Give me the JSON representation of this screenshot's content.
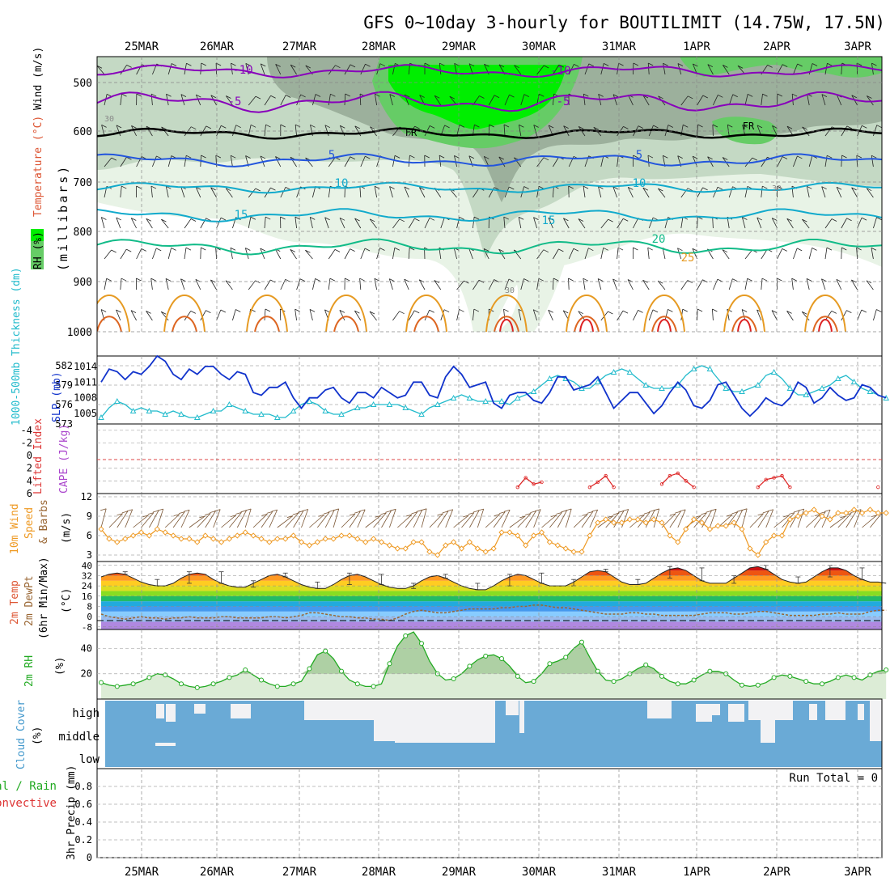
{
  "title": "GFS 0~10day 3-hourly for BOUTILIMIT (14.75W, 17.5N)",
  "dates": [
    "25MAR",
    "26MAR",
    "27MAR",
    "28MAR",
    "29MAR",
    "30MAR",
    "31MAR",
    "1APR",
    "2APR",
    "3APR"
  ],
  "colors": {
    "rh_light": "#e8f3e6",
    "rh_mid": "#c4d9c4",
    "rh_dark": "#9cb09c",
    "rh_green": "#66cc66",
    "rh_bright": "#00ee00",
    "purple": "#8800bb",
    "blue": "#2255dd",
    "cyan": "#11aacc",
    "teal": "#11bb88",
    "orange": "#e69a22",
    "red": "#dd2222",
    "slp": "#1133cc",
    "thick": "#22bbcc",
    "wind10": "#ee9922",
    "dew": "#996633",
    "rh2": "#22aa22",
    "cloud": "#6aaad6",
    "cloud_clear": "#f2f2f4"
  },
  "panels": {
    "upper": {
      "ylabel_rh": "RH (%)",
      "ylabel_temp": "Temperature (°C)",
      "ylabel_wind": "Wind (m/s)",
      "ylabel_units": "(millibars)",
      "levels": [
        "500",
        "600",
        "700",
        "800",
        "900",
        "1000"
      ],
      "contour_labels": [
        "-10",
        "-5",
        "FR",
        "5",
        "10",
        "15",
        "20",
        "25",
        "30"
      ]
    },
    "slp": {
      "ylabel_thick": "1000-500mb Thickness (dm)",
      "ylabel_slp": "SLP (mb)",
      "left_ticks": [
        "582",
        "579",
        "576",
        "573"
      ],
      "right_ticks": [
        "1014",
        "1011",
        "1008",
        "1005"
      ]
    },
    "cape": {
      "ylabel_li": "Lifted Index",
      "ylabel_cape": "CAPE (J/kg)",
      "left_ticks": [
        "-4",
        "-2",
        "0",
        "2",
        "4",
        "6"
      ]
    },
    "wind": {
      "ylabel1": "10m Wind",
      "ylabel2": "Speed",
      "ylabel3": "& Barbs",
      "units": "(m/s)",
      "ticks": [
        "3",
        "6",
        "9",
        "12"
      ]
    },
    "temp": {
      "ylabel1": "2m Temp",
      "ylabel2": "2m DewPt",
      "ylabel3": "(6hr Min/Max)",
      "units": "(°C)",
      "ticks": [
        "40",
        "32",
        "24",
        "16",
        "8",
        "0",
        "-8"
      ]
    },
    "rh2m": {
      "ylabel": "2m RH",
      "units": "(%)",
      "ticks": [
        "40",
        "20"
      ]
    },
    "cloud": {
      "ylabel": "Cloud Cover",
      "units": "(%)",
      "levels": [
        "high",
        "middle",
        "low"
      ]
    },
    "precip": {
      "ylabel1": "Total / Rain",
      "ylabel2": "Convective",
      "ylabel3": "3hr Precip (mm)",
      "ticks": [
        "0.8",
        "0.6",
        "0.4",
        "0.2",
        "0"
      ],
      "run_total": "Run Total = 0"
    }
  },
  "chart_data": [
    {
      "type": "line",
      "title": "",
      "panel": "SLP and 1000-500mb Thickness",
      "xlabel": "",
      "ylabel": "SLP (mb)",
      "ylim": [
        1003,
        1016
      ],
      "series": [
        {
          "name": "SLP (mb)",
          "values": [
            1011,
            1013.5,
            1013,
            1011.5,
            1013,
            1012.5,
            1014,
            1016,
            1015,
            1012.5,
            1011.5,
            1013.5,
            1012.5,
            1014,
            1014,
            1012.5,
            1011.5,
            1013,
            1012.5,
            1009,
            1008.5,
            1010,
            1010,
            1011,
            1008,
            1006,
            1008,
            1008,
            1009.5,
            1010,
            1008,
            1007,
            1009,
            1009,
            1008,
            1010,
            1009,
            1008,
            1008.5,
            1011,
            1011,
            1008.5,
            1008,
            1012,
            1014,
            1012.5,
            1010,
            1010.5,
            1011,
            1007,
            1006,
            1008.5,
            1009,
            1009,
            1007.5,
            1007,
            1009,
            1012,
            1012,
            1009.5,
            1010,
            1010.5,
            1012,
            1009,
            1006,
            1007.5,
            1009,
            1009,
            1007,
            1005,
            1006.5,
            1009,
            1011,
            1009.5,
            1006.5,
            1006,
            1007.5,
            1010.5,
            1011,
            1008.5,
            1006,
            1004.5,
            1006,
            1008,
            1007,
            1006.5,
            1008,
            1011,
            1010,
            1007,
            1008,
            1010,
            1008.5,
            1007.5,
            1008,
            1010.5,
            1010,
            1008.5,
            1008
          ]
        }
      ]
    },
    {
      "type": "line",
      "title": "",
      "panel": "SLP and 1000-500mb Thickness",
      "xlabel": "",
      "ylabel": "1000-500mb Thickness (dm)",
      "ylim": [
        573,
        583.5
      ],
      "series": [
        {
          "name": "1000-500mb Thickness (dm)",
          "values": [
            574,
            575.5,
            576.5,
            576,
            575,
            575.5,
            575,
            575,
            574.5,
            575,
            574.5,
            574,
            574,
            574.5,
            575,
            575,
            576,
            575.5,
            575,
            574.5,
            574.5,
            574.5,
            574,
            574,
            575,
            576,
            576.5,
            576,
            575,
            574.5,
            574.5,
            575,
            575.5,
            575.5,
            576,
            576,
            576,
            576,
            575.5,
            575,
            574.5,
            575.5,
            576,
            576.5,
            577,
            577.5,
            577,
            576.5,
            576.5,
            576.5,
            576.5,
            576,
            577,
            577.5,
            578,
            579,
            580,
            580.5,
            580,
            579.5,
            578.5,
            578.5,
            579.5,
            580.5,
            581,
            581.5,
            581,
            580,
            579,
            578.5,
            578.5,
            578.5,
            579,
            580.5,
            581.5,
            582,
            581.5,
            580,
            578.5,
            578,
            578,
            578.5,
            579,
            580.5,
            581,
            580,
            578.5,
            577.5,
            577.5,
            578,
            578.5,
            579,
            580,
            580.5,
            579.5,
            578.5,
            578,
            577.5,
            577
          ]
        }
      ]
    },
    {
      "type": "line",
      "title": "",
      "panel": "Lifted Index",
      "xlabel": "",
      "ylabel": "Lifted Index",
      "ylim": [
        -5,
        6
      ],
      "series": [
        {
          "name": "Lifted Index",
          "values": [
            null,
            null,
            null,
            null,
            null,
            null,
            null,
            null,
            null,
            null,
            null,
            null,
            null,
            null,
            null,
            null,
            null,
            null,
            null,
            null,
            null,
            null,
            null,
            null,
            null,
            null,
            null,
            null,
            null,
            null,
            null,
            null,
            null,
            null,
            null,
            null,
            null,
            null,
            null,
            null,
            null,
            null,
            null,
            null,
            null,
            null,
            null,
            null,
            null,
            null,
            null,
            null,
            5,
            3.5,
            4.5,
            4.2,
            null,
            null,
            null,
            null,
            null,
            5,
            4.2,
            3.2,
            5,
            null,
            null,
            null,
            null,
            null,
            4.5,
            3.2,
            2.8,
            4,
            5,
            null,
            null,
            null,
            null,
            null,
            null,
            null,
            5,
            3.8,
            3.5,
            3.2,
            5,
            null,
            null,
            null,
            null,
            null,
            null,
            null,
            null,
            null,
            null,
            5,
            null
          ]
        }
      ]
    },
    {
      "type": "line",
      "title": "",
      "panel": "10m Wind Speed & Barbs",
      "xlabel": "",
      "ylabel": "(m/s)",
      "ylim": [
        2,
        12.5
      ],
      "series": [
        {
          "name": "10m Wind Speed",
          "values": [
            7,
            5.5,
            5,
            5.5,
            6,
            6.5,
            6,
            7,
            6.5,
            6,
            5.5,
            5.5,
            5,
            6,
            5.5,
            5,
            5.5,
            6,
            6.5,
            6,
            5.5,
            5,
            5.5,
            5.5,
            6,
            5,
            4.5,
            5,
            5.5,
            5.5,
            6,
            6,
            5.5,
            5,
            5.5,
            5,
            4.5,
            4,
            4,
            5,
            5,
            3.5,
            3,
            4.5,
            5,
            4,
            5,
            4,
            3.5,
            4,
            6.5,
            6.5,
            6,
            4.5,
            6,
            6.5,
            5,
            4.5,
            4,
            3.5,
            3.5,
            6,
            8,
            8.5,
            8,
            8,
            8.5,
            8.5,
            8,
            8.5,
            8,
            6,
            5,
            7,
            8.5,
            8,
            7,
            7.5,
            7.5,
            8,
            7,
            4,
            3,
            5,
            6,
            6,
            8.5,
            9,
            9.5,
            10,
            9,
            8.5,
            9.5,
            9.5,
            10,
            9.5,
            10,
            9.5,
            9.5
          ]
        }
      ]
    },
    {
      "type": "area",
      "title": "",
      "panel": "2m Temp / DewPt",
      "xlabel": "",
      "ylabel": "(°C)",
      "ylim": [
        -10,
        43
      ],
      "series": [
        {
          "name": "2m Temp",
          "values": [
            31,
            33,
            34,
            33,
            30,
            27,
            25,
            24,
            24,
            26,
            30,
            33,
            34,
            33,
            29,
            26,
            24,
            23,
            23,
            26,
            29,
            32,
            33,
            31,
            28,
            25,
            23,
            22,
            22,
            25,
            29,
            32,
            33,
            31,
            28,
            25,
            23,
            22,
            22,
            24,
            28,
            31,
            32,
            30,
            27,
            24,
            22,
            21,
            21,
            24,
            28,
            31,
            33,
            32,
            29,
            26,
            24,
            24,
            24,
            27,
            31,
            35,
            36,
            35,
            31,
            27,
            25,
            25,
            26,
            30,
            34,
            37,
            38,
            36,
            32,
            28,
            26,
            26,
            26,
            30,
            34,
            38,
            39,
            37,
            33,
            29,
            27,
            26,
            27,
            31,
            35,
            38,
            38,
            36,
            32,
            29,
            27,
            27,
            26
          ]
        },
        {
          "name": "2m DewPt",
          "values": [
            2,
            0,
            -1,
            -2,
            -1,
            0,
            -1,
            -1,
            -2,
            -1,
            -1,
            0,
            -1,
            -1,
            -1,
            0,
            0,
            -1,
            -1,
            -1,
            -1,
            0,
            0,
            -1,
            0,
            1,
            3,
            3,
            2,
            1,
            0,
            0,
            -1,
            -1,
            -2,
            -2,
            -3,
            -1,
            2,
            4,
            5,
            4,
            3,
            3,
            4,
            5,
            6,
            6,
            6,
            6,
            7,
            7,
            8,
            8,
            9,
            9,
            8,
            7,
            7,
            6,
            5,
            4,
            3,
            2,
            2,
            2,
            3,
            3,
            2,
            2,
            1,
            1,
            1,
            1,
            1,
            2,
            3,
            3,
            3,
            2,
            2,
            3,
            4,
            4,
            3,
            2,
            1,
            1,
            1,
            1,
            2,
            2,
            3,
            2,
            2,
            2,
            4,
            5,
            5
          ]
        }
      ]
    },
    {
      "type": "area",
      "title": "",
      "panel": "2m RH",
      "xlabel": "",
      "ylabel": "(%)",
      "ylim": [
        0,
        55
      ],
      "series": [
        {
          "name": "2m RH",
          "values": [
            13,
            11,
            10,
            11,
            12,
            14,
            17,
            20,
            19,
            16,
            12,
            10,
            9,
            10,
            12,
            14,
            17,
            19,
            23,
            19,
            15,
            12,
            10,
            10,
            12,
            14,
            24,
            35,
            38,
            32,
            22,
            15,
            12,
            10,
            10,
            12,
            28,
            42,
            50,
            53,
            44,
            30,
            20,
            15,
            16,
            20,
            26,
            31,
            34,
            35,
            32,
            26,
            18,
            13,
            14,
            20,
            28,
            30,
            33,
            40,
            45,
            33,
            22,
            15,
            14,
            16,
            20,
            24,
            27,
            24,
            18,
            14,
            12,
            12,
            15,
            19,
            22,
            22,
            20,
            15,
            11,
            10,
            11,
            13,
            17,
            19,
            18,
            16,
            14,
            12,
            12,
            14,
            17,
            19,
            17,
            15,
            19,
            22,
            23
          ]
        }
      ]
    },
    {
      "type": "area",
      "title": "",
      "panel": "3hr Precip",
      "xlabel": "",
      "ylabel": "3hr Precip (mm)",
      "ylim": [
        0,
        1
      ],
      "series": [
        {
          "name": "Total / Rain",
          "values": [
            0,
            0,
            0,
            0,
            0,
            0,
            0,
            0,
            0,
            0,
            0,
            0,
            0,
            0,
            0,
            0,
            0,
            0,
            0,
            0,
            0,
            0,
            0,
            0,
            0,
            0,
            0,
            0,
            0,
            0,
            0,
            0,
            0,
            0,
            0,
            0,
            0,
            0,
            0,
            0,
            0,
            0,
            0,
            0,
            0,
            0,
            0,
            0,
            0,
            0,
            0,
            0,
            0,
            0,
            0,
            0,
            0,
            0,
            0,
            0,
            0,
            0,
            0,
            0,
            0,
            0,
            0,
            0,
            0,
            0,
            0,
            0,
            0,
            0,
            0,
            0,
            0,
            0,
            0,
            0,
            0,
            0,
            0,
            0,
            0,
            0,
            0,
            0,
            0,
            0,
            0,
            0,
            0,
            0,
            0,
            0,
            0,
            0,
            0
          ]
        }
      ]
    }
  ]
}
